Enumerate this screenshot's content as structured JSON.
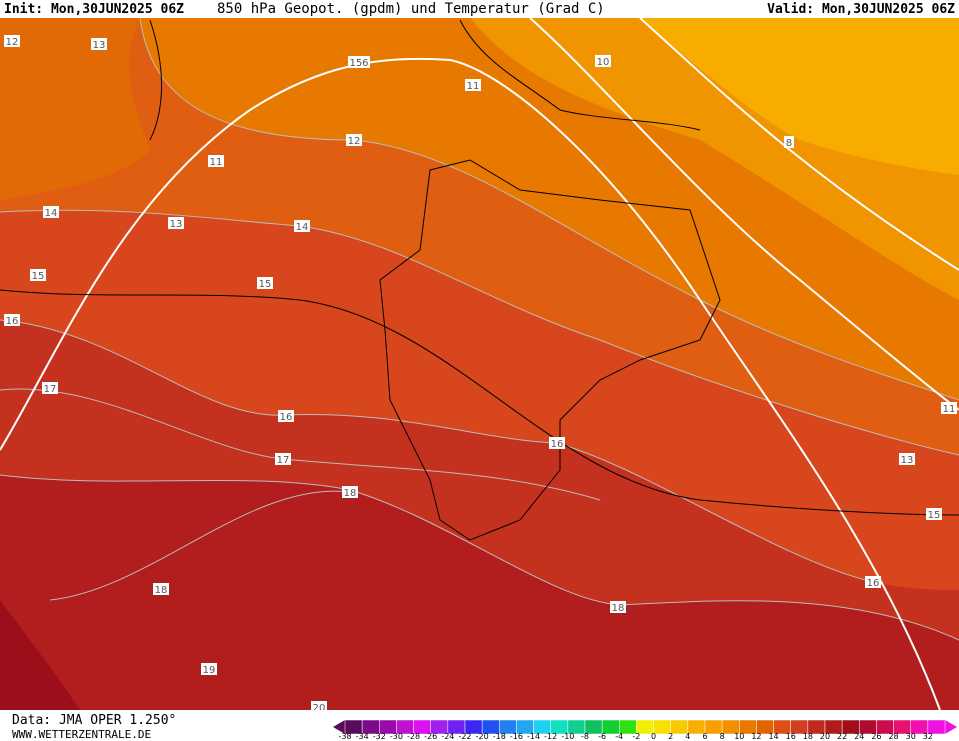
{
  "header": {
    "init": "Init: Mon,30JUN2025 06Z",
    "title": "850 hPa Geopot. (gpdm) und Temperatur (Grad C)",
    "valid": "Valid: Mon,30JUN2025 06Z"
  },
  "map": {
    "contour_labels": [
      "12",
      "13",
      "156",
      "10",
      "11",
      "12",
      "11",
      "8",
      "14",
      "13",
      "14",
      "15",
      "15",
      "16",
      "17",
      "16",
      "11",
      "16",
      "17",
      "13",
      "18",
      "15",
      "16",
      "18",
      "18",
      "19",
      "20"
    ]
  },
  "footer": {
    "data": "Data: JMA OPER 1.250°",
    "site": "WWW.WETTERZENTRALE.DE"
  },
  "legend": {
    "labels": [
      "-38",
      "-34",
      "-32",
      "-30",
      "-28",
      "-26",
      "-24",
      "-22",
      "-20",
      "-18",
      "-16",
      "-14",
      "-12",
      "-10",
      "-8",
      "-6",
      "-4",
      "-2",
      "0",
      "2",
      "4",
      "6",
      "8",
      "10",
      "12",
      "14",
      "16",
      "18",
      "20",
      "22",
      "24",
      "26",
      "28",
      "30",
      "32"
    ],
    "colors": [
      "#5a0a5a",
      "#7a0a8a",
      "#9a0aaa",
      "#c010d0",
      "#dc10f0",
      "#a020f0",
      "#7020f0",
      "#3a28f0",
      "#2050f0",
      "#2080f0",
      "#20a8f0",
      "#20d0f0",
      "#10e0c0",
      "#10d090",
      "#10c060",
      "#10d030",
      "#30e010",
      "#f0f000",
      "#f8e000",
      "#f8c800",
      "#f8b000",
      "#f8a000",
      "#f09000",
      "#e87800",
      "#e06400",
      "#dc5018",
      "#d04020",
      "#c02a1e",
      "#b01c1c",
      "#a00e1a",
      "#b00a30",
      "#d00a50",
      "#e81070",
      "#f010b0",
      "#f010e0"
    ]
  }
}
